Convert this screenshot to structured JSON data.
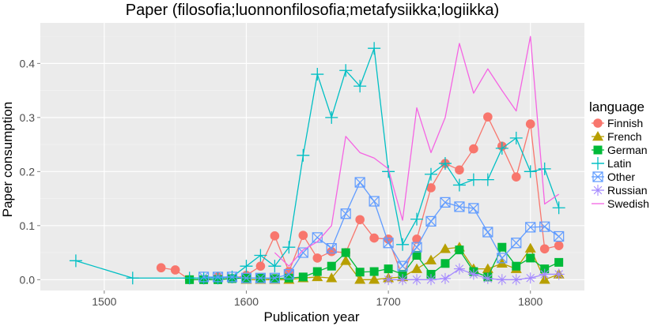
{
  "chart_data": {
    "type": "line",
    "title": "Paper (filosofia;luonnonfilosofia;metafysiikka;logiikka)",
    "xlabel": "Publication year",
    "ylabel": "Paper consumption",
    "xlim": [
      1455,
      1838
    ],
    "ylim": [
      -0.02,
      0.475
    ],
    "xticks": [
      1500,
      1600,
      1700,
      1800
    ],
    "yticks": [
      0.0,
      0.1,
      0.2,
      0.3,
      0.4
    ],
    "ytick_labels": [
      "0.0",
      "0.1",
      "0.2",
      "0.3",
      "0.4"
    ],
    "grid": true,
    "background": "#ebebeb",
    "legend": {
      "title": "language",
      "position": "right"
    },
    "series": [
      {
        "name": "Finnish",
        "color": "#F8766D",
        "shape": "circle",
        "x": [
          1540,
          1550,
          1560,
          1570,
          1580,
          1590,
          1600,
          1610,
          1620,
          1630,
          1640,
          1650,
          1660,
          1670,
          1680,
          1690,
          1700,
          1710,
          1720,
          1730,
          1740,
          1750,
          1760,
          1770,
          1780,
          1790,
          1800,
          1810,
          1820
        ],
        "y": [
          0.022,
          0.018,
          0.0,
          0.0,
          0.005,
          0.002,
          0.008,
          0.025,
          0.081,
          0.015,
          0.082,
          0.04,
          0.052,
          0.05,
          0.111,
          0.077,
          0.075,
          0.005,
          0.075,
          0.17,
          0.215,
          0.203,
          0.242,
          0.301,
          0.247,
          0.19,
          0.288,
          0.057,
          0.063
        ]
      },
      {
        "name": "French",
        "color": "#B79F00",
        "shape": "triangle",
        "x": [
          1600,
          1610,
          1620,
          1630,
          1640,
          1650,
          1660,
          1670,
          1680,
          1690,
          1700,
          1710,
          1720,
          1730,
          1740,
          1750,
          1760,
          1770,
          1780,
          1790,
          1800,
          1810,
          1820
        ],
        "y": [
          0.0,
          0.0,
          0.0,
          0.0,
          0.003,
          0.005,
          0.003,
          0.035,
          0.0,
          0.0,
          0.003,
          0.005,
          0.02,
          0.036,
          0.057,
          0.06,
          0.02,
          0.02,
          0.03,
          0.02,
          0.058,
          0.0,
          0.01
        ]
      },
      {
        "name": "German",
        "color": "#00BA38",
        "shape": "square",
        "x": [
          1560,
          1570,
          1580,
          1590,
          1600,
          1610,
          1620,
          1630,
          1640,
          1650,
          1660,
          1670,
          1680,
          1690,
          1700,
          1710,
          1720,
          1730,
          1740,
          1750,
          1760,
          1770,
          1780,
          1790,
          1800,
          1810,
          1820
        ],
        "y": [
          0.0,
          0.0,
          0.0,
          0.002,
          0.003,
          0.003,
          0.002,
          0.003,
          0.005,
          0.015,
          0.025,
          0.05,
          0.014,
          0.015,
          0.02,
          0.01,
          0.045,
          0.01,
          0.03,
          0.055,
          0.015,
          0.005,
          0.06,
          0.025,
          0.04,
          0.02,
          0.032
        ]
      },
      {
        "name": "Latin",
        "color": "#00BFC4",
        "shape": "plus",
        "x": [
          1480,
          1520,
          1560,
          1570,
          1580,
          1590,
          1600,
          1610,
          1620,
          1630,
          1640,
          1650,
          1660,
          1670,
          1680,
          1690,
          1700,
          1710,
          1720,
          1730,
          1740,
          1750,
          1760,
          1770,
          1780,
          1790,
          1800,
          1810,
          1820
        ],
        "y": [
          0.035,
          0.003,
          0.003,
          0.003,
          0.003,
          0.005,
          0.025,
          0.045,
          0.025,
          0.06,
          0.23,
          0.38,
          0.3,
          0.387,
          0.358,
          0.428,
          0.2,
          0.065,
          0.112,
          0.195,
          0.215,
          0.175,
          0.185,
          0.185,
          0.243,
          0.262,
          0.2,
          0.205,
          0.133
        ]
      },
      {
        "name": "Other",
        "color": "#619CFF",
        "shape": "square-x",
        "x": [
          1570,
          1580,
          1590,
          1600,
          1610,
          1620,
          1630,
          1640,
          1650,
          1660,
          1670,
          1680,
          1690,
          1700,
          1710,
          1720,
          1730,
          1740,
          1750,
          1760,
          1770,
          1780,
          1790,
          1800,
          1810,
          1820
        ],
        "y": [
          0.005,
          0.005,
          0.005,
          0.003,
          0.003,
          0.003,
          0.01,
          0.05,
          0.078,
          0.058,
          0.122,
          0.18,
          0.145,
          0.068,
          0.025,
          0.06,
          0.108,
          0.143,
          0.135,
          0.132,
          0.088,
          0.04,
          0.068,
          0.097,
          0.098,
          0.08
        ]
      },
      {
        "name": "Russian",
        "color": "#A58AFF",
        "shape": "asterisk",
        "x": [
          1700,
          1710,
          1720,
          1730,
          1740,
          1750,
          1760,
          1770,
          1780,
          1790,
          1800,
          1810,
          1820
        ],
        "y": [
          0.0,
          0.0,
          0.0,
          0.0,
          0.002,
          0.02,
          0.01,
          0.002,
          0.0,
          0.0,
          0.003,
          0.01,
          0.01
        ]
      },
      {
        "name": "Swedish",
        "color": "#F564E3",
        "shape": "line",
        "x": [
          1620,
          1630,
          1640,
          1650,
          1660,
          1670,
          1680,
          1690,
          1700,
          1710,
          1720,
          1730,
          1740,
          1750,
          1760,
          1770,
          1780,
          1790,
          1800,
          1810,
          1820
        ],
        "y": [
          0.05,
          0.025,
          0.055,
          0.07,
          0.1,
          0.265,
          0.235,
          0.225,
          0.205,
          0.11,
          0.318,
          0.235,
          0.3,
          0.437,
          0.345,
          0.39,
          0.35,
          0.312,
          0.45,
          0.14,
          0.158
        ]
      }
    ]
  }
}
